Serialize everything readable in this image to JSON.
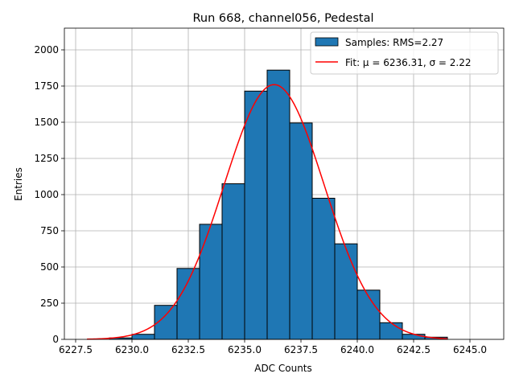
{
  "chart_data": {
    "type": "bar",
    "title": "Run 668, channel056, Pedestal",
    "xlabel": "ADC Counts",
    "ylabel": "Entries",
    "xlim": [
      6227.0,
      6246.5
    ],
    "ylim": [
      0,
      2150
    ],
    "xticks": [
      6227.5,
      6230.0,
      6232.5,
      6235.0,
      6237.5,
      6240.0,
      6242.5,
      6245.0
    ],
    "xtick_labels": [
      "6227.5",
      "6230.0",
      "6232.5",
      "6235.0",
      "6237.5",
      "6240.0",
      "6242.5",
      "6245.0"
    ],
    "yticks": [
      0,
      250,
      500,
      750,
      1000,
      1250,
      1500,
      1750,
      2000
    ],
    "ytick_labels": [
      "0",
      "250",
      "500",
      "750",
      "1000",
      "1250",
      "1500",
      "1750",
      "2000"
    ],
    "grid": true,
    "legend_position": "top-right",
    "series": [
      {
        "name": "Samples: RMS=2.27",
        "type": "histogram",
        "color": "#1f77b4",
        "edge_color": "#000000",
        "bin_edges": [
          6229.0,
          6230.0,
          6231.0,
          6232.0,
          6233.0,
          6234.0,
          6235.0,
          6236.0,
          6237.0,
          6238.0,
          6239.0,
          6240.0,
          6241.0,
          6242.0,
          6243.0,
          6244.0
        ],
        "values": [
          10,
          35,
          235,
          490,
          795,
          1075,
          1715,
          1860,
          1495,
          975,
          660,
          340,
          115,
          35,
          15
        ]
      },
      {
        "name": "Fit: μ = 6236.31, σ = 2.22",
        "type": "line",
        "color": "#ff0000",
        "mu": 6236.31,
        "sigma": 2.22,
        "amplitude": 1760,
        "x_range": [
          6228.0,
          6244.0
        ]
      }
    ]
  }
}
